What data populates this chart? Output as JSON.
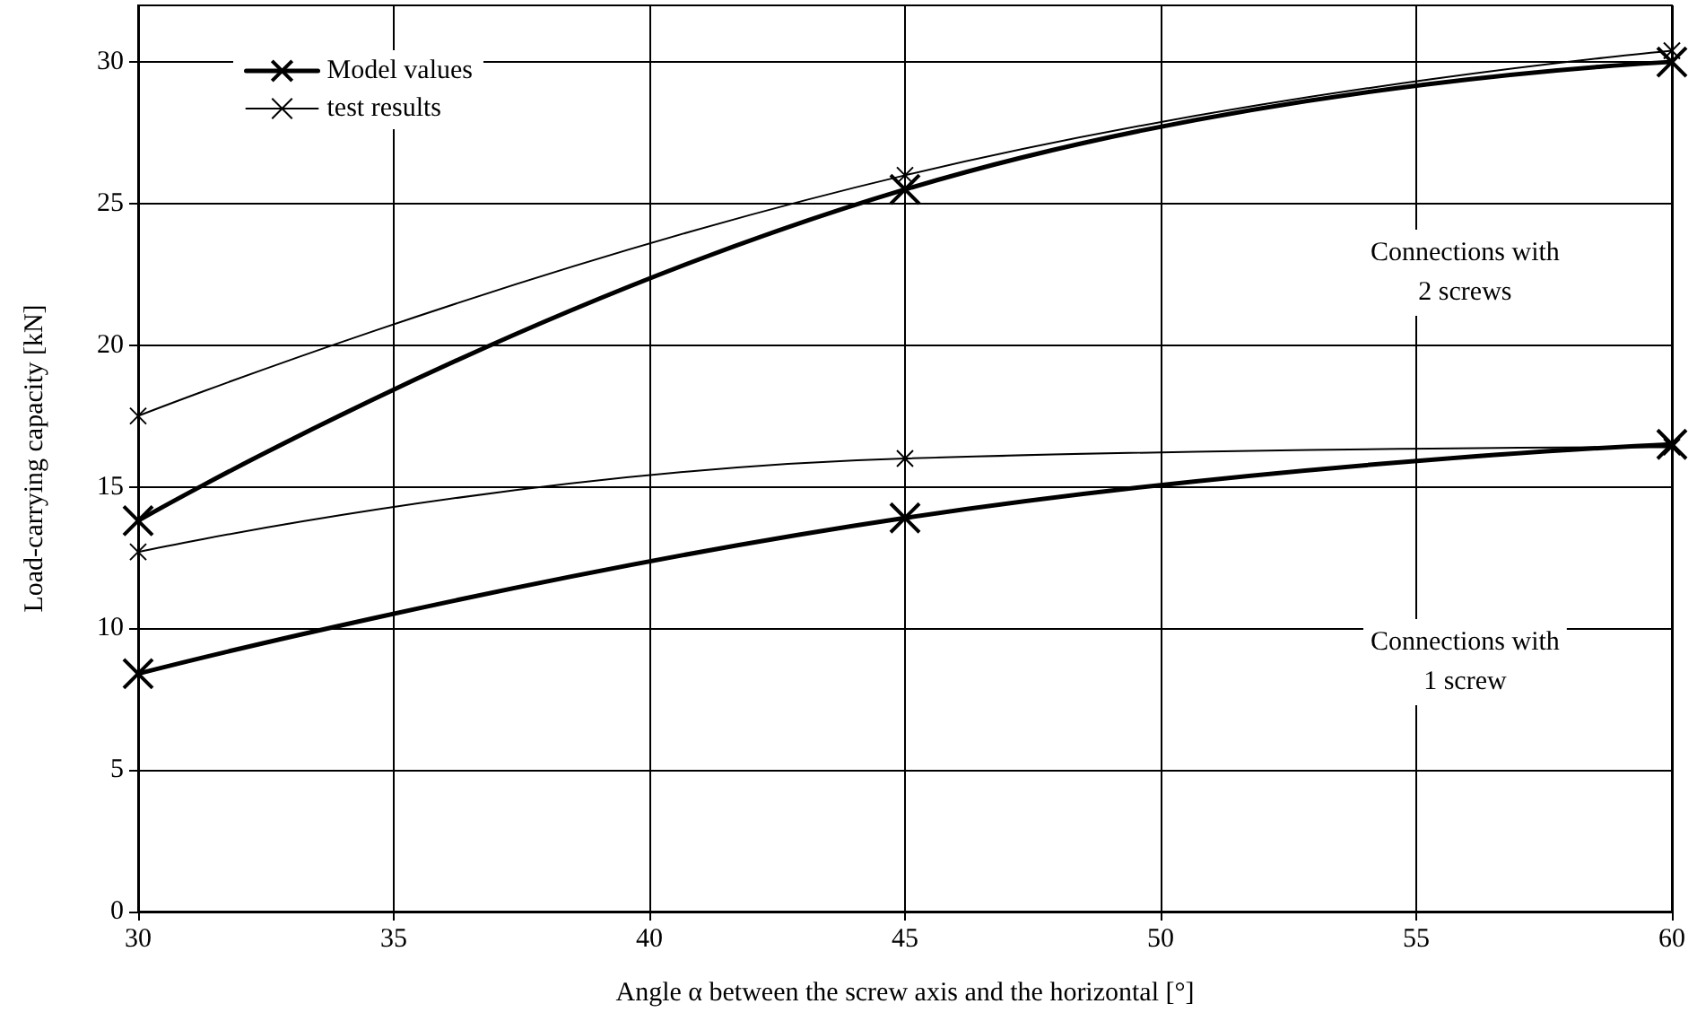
{
  "chart_data": {
    "type": "line",
    "xlabel": "Angle α between the screw axis and the horizontal [°]",
    "ylabel": "Load-carrying capacity [kN]",
    "x": [
      30,
      45,
      60
    ],
    "series": [
      {
        "name": "Model values",
        "color": "#000000",
        "values": [
          13.8,
          25.5,
          30.0
        ]
      },
      {
        "name": "test results",
        "color": "#000000",
        "values": [
          17.5,
          26.0,
          30.4
        ]
      },
      {
        "color": "#000000",
        "values": [
          8.4,
          13.9,
          16.5
        ]
      },
      {
        "color": "#000000",
        "values": [
          12.7,
          16.0,
          16.4
        ]
      }
    ],
    "xlim": [
      30,
      60
    ],
    "xticks": [
      30,
      35,
      40,
      45,
      50,
      55,
      60
    ],
    "ylim": [
      0,
      32
    ],
    "yticks": [
      0,
      5,
      10,
      15,
      20,
      25,
      30
    ],
    "annotations": [
      "Connections with\n2 screws",
      "Connections with\n1 screw"
    ],
    "grid": true,
    "legend": "top left",
    "marker": "cross",
    "line_style": "solid"
  }
}
